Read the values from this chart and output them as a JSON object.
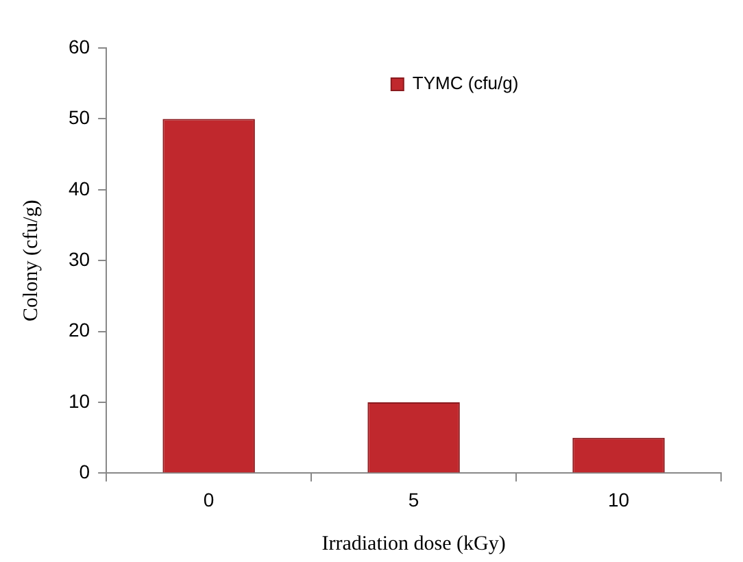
{
  "chart_data": {
    "type": "bar",
    "xlabel": "Irradiation dose (kGy)",
    "ylabel": "Colony (cfu/g)",
    "categories": [
      "0",
      "5",
      "10"
    ],
    "series": [
      {
        "name": "TYMC (cfu/g)",
        "color": "#c0282d",
        "values": [
          50,
          10,
          5
        ]
      }
    ],
    "ylim": [
      0,
      60
    ],
    "yticks": [
      0,
      10,
      20,
      30,
      40,
      50,
      60
    ],
    "grid": false,
    "legend": "top"
  }
}
